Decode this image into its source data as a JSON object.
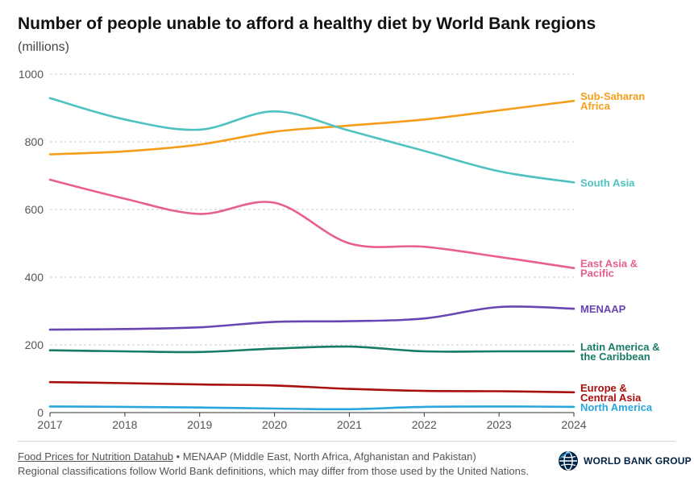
{
  "header": {
    "title": "Number of people unable to afford a healthy diet by World Bank regions",
    "subtitle": "(millions)"
  },
  "footer": {
    "source_link": "Food Prices for Nutrition Datahub",
    "note_line1": " • MENAAP (Middle East, North Africa, Afghanistan and Pakistan)",
    "note_line2": "Regional classifications follow World Bank definitions, which may differ from those used by the United Nations."
  },
  "logo": {
    "text": "WORLD BANK GROUP",
    "icon": "world-bank-globe-icon",
    "color": "#002244"
  },
  "chart_data": {
    "type": "line",
    "title": "Number of people unable to afford a healthy diet by World Bank regions",
    "ylabel": "(millions)",
    "x": [
      2017,
      2018,
      2019,
      2020,
      2021,
      2022,
      2023,
      2024
    ],
    "xlim": [
      2017,
      2024
    ],
    "ylim": [
      0,
      1000
    ],
    "yticks": [
      0,
      200,
      400,
      600,
      800,
      1000
    ],
    "grid": true,
    "legend": "inline labels at right end of lines",
    "series": [
      {
        "name": "Sub-Saharan Africa",
        "label_lines": [
          "Sub-Saharan",
          "Africa"
        ],
        "color": "#F59E1B",
        "values": [
          763,
          772,
          792,
          830,
          848,
          866,
          893,
          921
        ]
      },
      {
        "name": "South Asia",
        "label_lines": [
          "South Asia"
        ],
        "color": "#4EC2C0",
        "values": [
          929,
          866,
          836,
          890,
          833,
          773,
          713,
          680
        ]
      },
      {
        "name": "East Asia & Pacific",
        "label_lines": [
          "East Asia &",
          "Pacific"
        ],
        "color": "#E85E8E",
        "values": [
          688,
          632,
          587,
          620,
          500,
          490,
          460,
          427
        ]
      },
      {
        "name": "MENAAP",
        "label_lines": [
          "MENAAP"
        ],
        "color": "#6945B4",
        "values": [
          245,
          247,
          252,
          268,
          270,
          278,
          312,
          307
        ]
      },
      {
        "name": "Latin America & the Caribbean",
        "label_lines": [
          "Latin America &",
          "the Caribbean"
        ],
        "color": "#177B66",
        "values": [
          184,
          181,
          179,
          189,
          195,
          181,
          181,
          181
        ]
      },
      {
        "name": "Europe & Central Asia",
        "label_lines": [
          "Europe &",
          "Central Asia"
        ],
        "color": "#A81010",
        "values": [
          90,
          87,
          83,
          80,
          70,
          64,
          63,
          60
        ]
      },
      {
        "name": "North America",
        "label_lines": [
          "North America"
        ],
        "color": "#29A6DE",
        "values": [
          18,
          17,
          15,
          12,
          10,
          17,
          18,
          17
        ]
      }
    ]
  }
}
